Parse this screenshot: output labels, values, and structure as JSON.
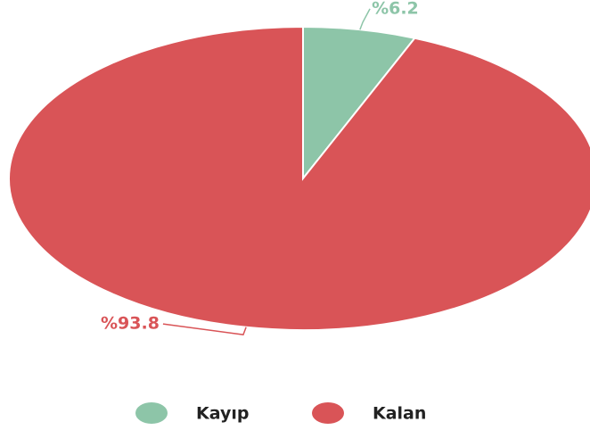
{
  "chart_data": {
    "type": "pie",
    "categories": [
      "Kayıp",
      "Kalan"
    ],
    "values": [
      6.2,
      93.8
    ],
    "value_labels": [
      "%6.2",
      "%93.8"
    ],
    "colors": [
      "#8dc5a8",
      "#d95457"
    ],
    "legend": "bottom"
  }
}
